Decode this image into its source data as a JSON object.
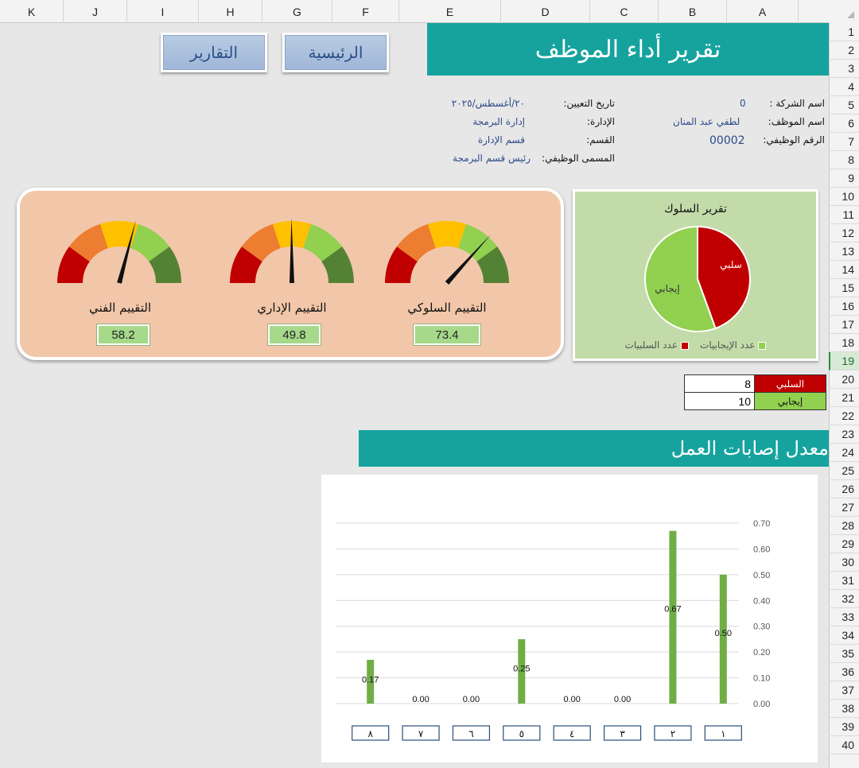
{
  "columns": [
    "K",
    "J",
    "I",
    "H",
    "G",
    "F",
    "E",
    "D",
    "C",
    "B",
    "A"
  ],
  "rows": [
    "1",
    "2",
    "3",
    "4",
    "5",
    "6",
    "7",
    "8",
    "9",
    "10",
    "11",
    "12",
    "13",
    "14",
    "15",
    "16",
    "17",
    "18",
    "19",
    "20",
    "21",
    "22",
    "23",
    "24",
    "25",
    "26",
    "27",
    "28",
    "29",
    "30",
    "31",
    "32",
    "33",
    "34",
    "35",
    "36",
    "37",
    "38",
    "39",
    "40"
  ],
  "selected_row": "19",
  "title": "تقرير أداء الموظف",
  "buttons": {
    "home": "الرئيسية",
    "reports": "التقارير"
  },
  "employee_info": {
    "company_label": "اسم الشركة :",
    "company_value": "0",
    "name_label": "اسم الموظف:",
    "name_value": "لطفي عبد المنان",
    "id_label": "الرقم الوظيفي:",
    "id_value": "00002",
    "hire_label": "تاريخ التعيين:",
    "hire_value": "٢٠/أغسطس/٢٠٢٥",
    "admin_label": "الإدارة:",
    "admin_value": "إدارة البرمجة",
    "dept_label": "القسم:",
    "dept_value": "قسم الإدارة",
    "job_label": "المسمى الوظيفي:",
    "job_value": "رئيس قسم البرمجة"
  },
  "gauges": [
    {
      "label": "التقييم الفني",
      "value": "58.2",
      "level": 58.2
    },
    {
      "label": "التقييم الإداري",
      "value": "49.8",
      "level": 49.8
    },
    {
      "label": "التقييم السلوكي",
      "value": "73.4",
      "level": 73.4
    }
  ],
  "gauge_colors": [
    "#c00000",
    "#ed7d31",
    "#ffc000",
    "#92d050",
    "#548235"
  ],
  "behavior_report": {
    "title": "تقرير السلوك",
    "negative_label": "سلبي",
    "positive_label": "إيجابي",
    "negative_count": 8,
    "positive_count": 10,
    "negative_color": "#c00000",
    "positive_color": "#92d050",
    "legend_positive": "عدد الإيجابيات",
    "legend_negative": "عدد السلبيات"
  },
  "behavior_table": [
    {
      "label": "السلبي",
      "value": "8",
      "color": "#c00000"
    },
    {
      "label": "إيجابي",
      "value": "10",
      "color": "#92d050"
    }
  ],
  "injury_title": "معدل إصابات العمل",
  "chart_data": {
    "type": "bar",
    "categories": [
      "١",
      "٢",
      "٣",
      "٤",
      "٥",
      "٦",
      "٧",
      "٨"
    ],
    "values": [
      0.5,
      0.67,
      0.0,
      0.0,
      0.25,
      0.0,
      0.0,
      0.17
    ],
    "value_labels": [
      "0.50",
      "0.67",
      "0.00",
      "0.00",
      "0.25",
      "0.00",
      "0.00",
      "0.17"
    ],
    "yticks": [
      "0.00",
      "0.10",
      "0.20",
      "0.30",
      "0.40",
      "0.50",
      "0.60",
      "0.70"
    ],
    "ylim": [
      0,
      0.7
    ],
    "axis_position": "right",
    "x_direction": "right-to-left",
    "grid": true,
    "bar_color": "#70ad47"
  }
}
